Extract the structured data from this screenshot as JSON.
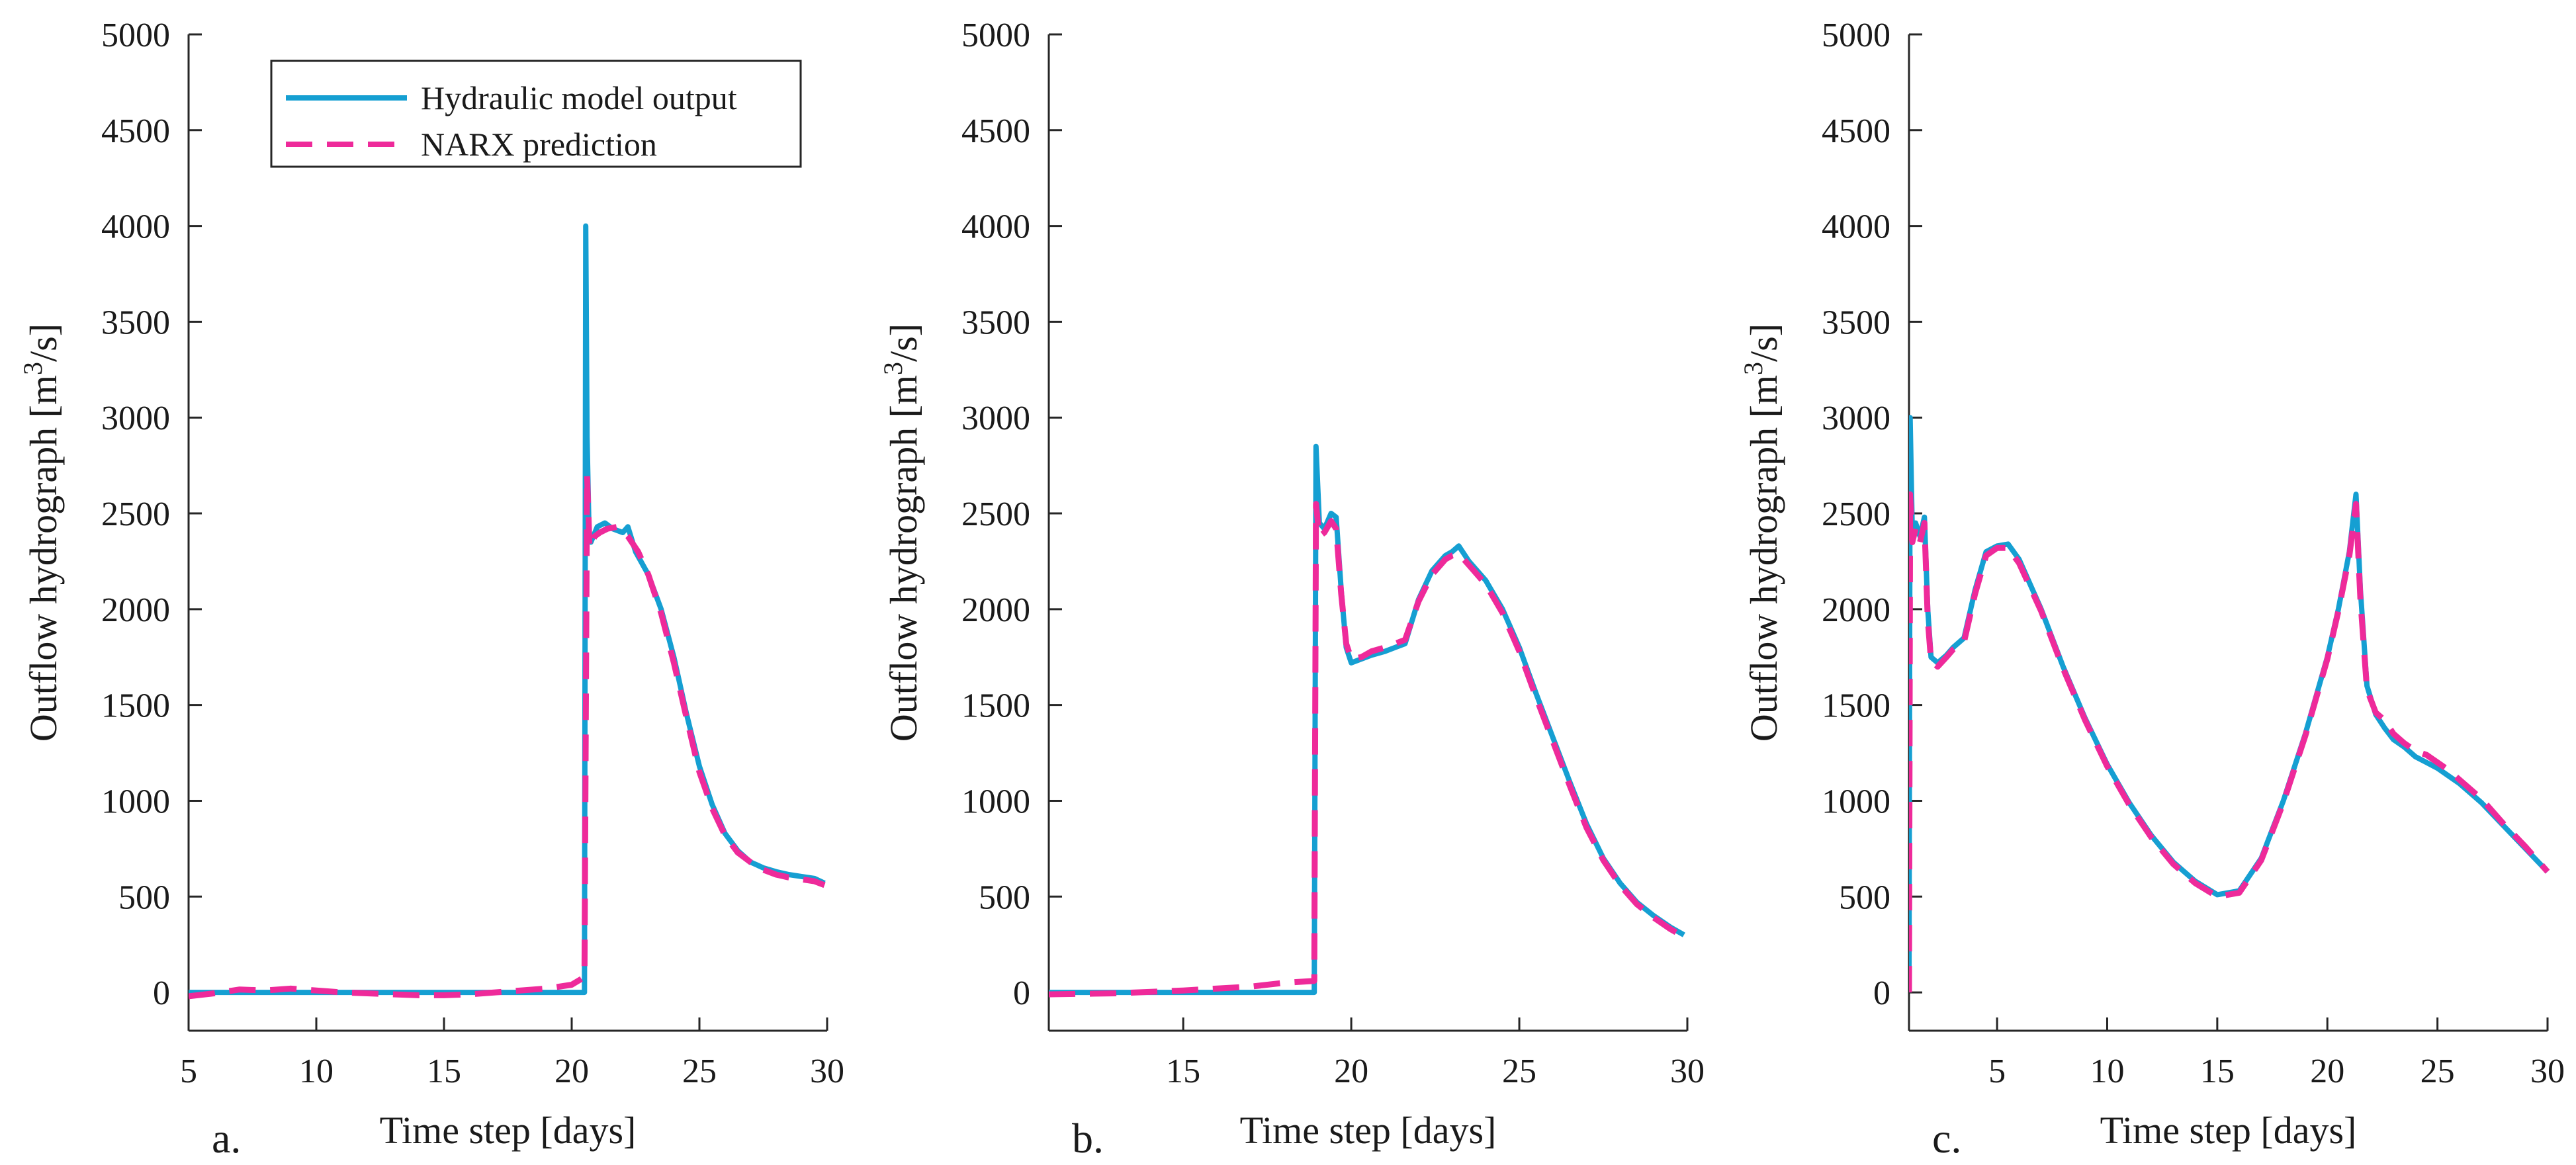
{
  "figure": {
    "panel_letters": [
      "a.",
      "b.",
      "c."
    ]
  },
  "chart_data": [
    {
      "type": "line",
      "panel": "a.",
      "title": "",
      "xlabel": "Time step [days]",
      "ylabel_main": "Outflow hydrograph [m",
      "ylabel_sup": "3",
      "ylabel_tail": "/s]",
      "xlim": [
        5,
        30
      ],
      "ylim": [
        -200,
        5000
      ],
      "xticks": [
        5,
        10,
        15,
        20,
        25,
        30
      ],
      "yticks": [
        0,
        500,
        1000,
        1500,
        2000,
        2500,
        3000,
        3500,
        4000,
        4500,
        5000
      ],
      "legend": {
        "placement": "top-left",
        "entries": [
          "Hydraulic model output",
          "NARX prediction"
        ]
      },
      "series": [
        {
          "name": "Hydraulic model output",
          "color": "#159fd2",
          "style": "solid",
          "x": [
            5,
            20.5,
            20.55,
            20.6,
            20.68,
            20.75,
            21.0,
            21.3,
            21.6,
            22.0,
            22.2,
            22.5,
            23.0,
            23.5,
            24.0,
            24.5,
            25.0,
            25.5,
            26.0,
            26.5,
            27.0,
            27.5,
            28.0,
            28.5,
            29.0,
            29.5,
            29.9
          ],
          "y": [
            0,
            0,
            4000,
            2900,
            2400,
            2350,
            2430,
            2450,
            2420,
            2400,
            2430,
            2300,
            2180,
            2000,
            1750,
            1450,
            1180,
            980,
            830,
            740,
            680,
            650,
            630,
            615,
            605,
            595,
            570
          ]
        },
        {
          "name": "NARX prediction",
          "color": "#ee2a9a",
          "style": "dashed",
          "x": [
            5,
            6,
            7,
            8,
            9,
            10,
            11,
            12,
            13,
            14,
            15,
            16,
            17,
            18,
            19,
            20,
            20.5,
            20.6,
            20.7,
            20.9,
            21.1,
            21.4,
            21.8,
            22.2,
            22.6,
            23.0,
            23.5,
            24.0,
            24.5,
            25.0,
            25.5,
            26.0,
            26.5,
            27.0,
            27.5,
            28.0,
            28.5,
            29.0,
            29.5,
            29.9
          ],
          "y": [
            -20,
            -5,
            15,
            10,
            20,
            10,
            0,
            -5,
            -10,
            -15,
            -15,
            -10,
            0,
            10,
            20,
            40,
            80,
            2700,
            2320,
            2380,
            2400,
            2420,
            2430,
            2380,
            2300,
            2180,
            1980,
            1720,
            1430,
            1150,
            960,
            820,
            730,
            680,
            640,
            615,
            600,
            590,
            580,
            560
          ]
        }
      ]
    },
    {
      "type": "line",
      "panel": "b.",
      "title": "",
      "xlabel": "Time step [days]",
      "ylabel_main": "Outflow hydrograph [m",
      "ylabel_sup": "3",
      "ylabel_tail": "/s]",
      "xlim": [
        11,
        30
      ],
      "ylim": [
        -200,
        5000
      ],
      "xticks": [
        15,
        20,
        25,
        30
      ],
      "yticks": [
        0,
        500,
        1000,
        1500,
        2000,
        2500,
        3000,
        3500,
        4000,
        4500,
        5000
      ],
      "series": [
        {
          "name": "Hydraulic model output",
          "color": "#159fd2",
          "style": "solid",
          "x": [
            11,
            18.9,
            18.95,
            19.05,
            19.2,
            19.4,
            19.55,
            19.7,
            19.85,
            20.0,
            20.3,
            20.6,
            21.0,
            21.3,
            21.6,
            22.0,
            22.4,
            22.8,
            23.0,
            23.2,
            23.5,
            24.0,
            24.5,
            25.0,
            25.5,
            26.0,
            26.5,
            27.0,
            27.5,
            28.0,
            28.5,
            29.0,
            29.5,
            29.9
          ],
          "y": [
            0,
            0,
            2850,
            2450,
            2420,
            2500,
            2480,
            2100,
            1800,
            1720,
            1740,
            1760,
            1780,
            1800,
            1820,
            2050,
            2200,
            2280,
            2300,
            2330,
            2250,
            2150,
            2000,
            1800,
            1560,
            1330,
            1100,
            880,
            700,
            570,
            470,
            400,
            340,
            300
          ]
        },
        {
          "name": "NARX prediction",
          "color": "#ee2a9a",
          "style": "dashed",
          "x": [
            11,
            13,
            15,
            17,
            18,
            18.9,
            18.95,
            19.05,
            19.2,
            19.4,
            19.55,
            19.7,
            19.85,
            20.0,
            20.3,
            20.6,
            21.0,
            21.3,
            21.6,
            22.0,
            22.4,
            22.8,
            23.0,
            23.2,
            23.5,
            24.0,
            24.5,
            25.0,
            25.5,
            26.0,
            26.5,
            27.0,
            27.5,
            28.0,
            28.5,
            29.0,
            29.5,
            29.9
          ],
          "y": [
            -10,
            -5,
            10,
            30,
            50,
            60,
            2550,
            2380,
            2400,
            2460,
            2420,
            2080,
            1820,
            1740,
            1750,
            1780,
            1800,
            1820,
            1840,
            2040,
            2180,
            2260,
            2280,
            2290,
            2230,
            2130,
            1980,
            1780,
            1540,
            1310,
            1080,
            860,
            690,
            560,
            460,
            390,
            330,
            290
          ]
        }
      ]
    },
    {
      "type": "line",
      "panel": "c.",
      "title": "",
      "xlabel": "Time step [days]",
      "ylabel_main": "Outflow hydrograph [m",
      "ylabel_sup": "3",
      "ylabel_tail": "/s]",
      "xlim": [
        1,
        30
      ],
      "ylim": [
        -200,
        5000
      ],
      "xticks": [
        5,
        10,
        15,
        20,
        25,
        30
      ],
      "yticks": [
        0,
        500,
        1000,
        1500,
        2000,
        2500,
        3000,
        3500,
        4000,
        4500,
        5000
      ],
      "series": [
        {
          "name": "Hydraulic model output",
          "color": "#159fd2",
          "style": "solid",
          "x": [
            1.0,
            1.05,
            1.15,
            1.3,
            1.5,
            1.7,
            1.85,
            2.0,
            2.3,
            2.7,
            3.0,
            3.5,
            4.0,
            4.5,
            5.0,
            5.5,
            6.0,
            7.0,
            8.0,
            9.0,
            10.0,
            11.0,
            12.0,
            13.0,
            14.0,
            15.0,
            16.0,
            17.0,
            18.0,
            19.0,
            20.0,
            20.5,
            21.0,
            21.3,
            21.5,
            21.8,
            22.2,
            22.6,
            23.0,
            23.5,
            24.0,
            24.5,
            25.0,
            25.5,
            26.0,
            27.0,
            28.0,
            29.0,
            30.0
          ],
          "y": [
            0,
            3000,
            2400,
            2450,
            2380,
            2480,
            2000,
            1750,
            1720,
            1760,
            1800,
            1850,
            2100,
            2300,
            2330,
            2340,
            2260,
            2000,
            1700,
            1430,
            1190,
            990,
            820,
            680,
            580,
            510,
            530,
            700,
            1000,
            1350,
            1750,
            2000,
            2300,
            2600,
            2100,
            1600,
            1450,
            1380,
            1320,
            1280,
            1230,
            1200,
            1170,
            1130,
            1090,
            990,
            870,
            750,
            630
          ]
        },
        {
          "name": "NARX prediction",
          "color": "#ee2a9a",
          "style": "dashed",
          "x": [
            1.0,
            1.05,
            1.15,
            1.3,
            1.5,
            1.7,
            1.85,
            2.0,
            2.3,
            2.7,
            3.0,
            3.5,
            4.0,
            4.5,
            5.0,
            5.5,
            6.0,
            7.0,
            8.0,
            9.0,
            10.0,
            11.0,
            12.0,
            13.0,
            14.0,
            15.0,
            16.0,
            17.0,
            18.0,
            19.0,
            20.0,
            20.5,
            21.0,
            21.3,
            21.5,
            21.8,
            22.2,
            22.6,
            23.0,
            23.5,
            24.0,
            24.5,
            25.0,
            25.5,
            26.0,
            27.0,
            28.0,
            29.0,
            30.0
          ],
          "y": [
            0,
            2600,
            2350,
            2420,
            2350,
            2450,
            1950,
            1730,
            1700,
            1750,
            1790,
            1830,
            2080,
            2280,
            2320,
            2320,
            2240,
            1990,
            1690,
            1420,
            1180,
            980,
            810,
            670,
            570,
            500,
            520,
            690,
            990,
            1340,
            1740,
            1990,
            2280,
            2550,
            2050,
            1580,
            1460,
            1420,
            1350,
            1300,
            1260,
            1240,
            1200,
            1160,
            1110,
            1010,
            880,
            760,
            630
          ]
        }
      ]
    }
  ]
}
